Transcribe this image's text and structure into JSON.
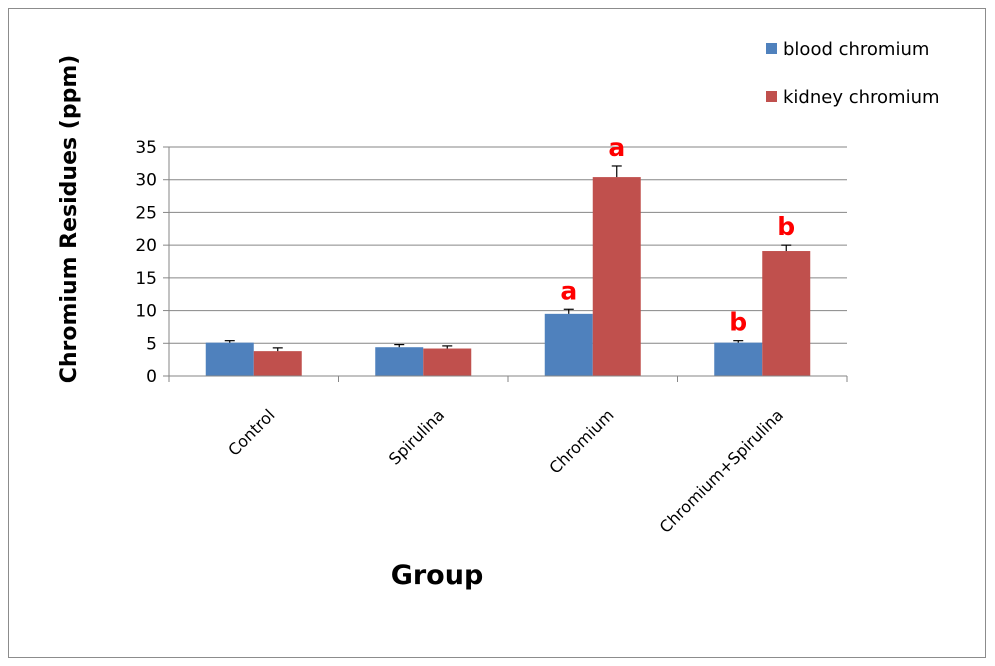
{
  "chart_data": {
    "type": "bar",
    "categories": [
      "Control",
      "Spirulina",
      "Chromium",
      "Chromium+Spirulina"
    ],
    "series": [
      {
        "name": "blood chromium",
        "color": "#4F81BD",
        "values": [
          5.1,
          4.4,
          9.5,
          5.1
        ],
        "errors": [
          0.3,
          0.4,
          0.7,
          0.3
        ],
        "labels": [
          "",
          "",
          "a",
          "b"
        ]
      },
      {
        "name": "kidney chromium",
        "color": "#C0504D",
        "values": [
          3.8,
          4.2,
          30.4,
          19.1
        ],
        "errors": [
          0.5,
          0.4,
          1.7,
          0.9
        ],
        "labels": [
          "",
          "",
          "a",
          "b"
        ]
      }
    ],
    "title": "",
    "xlabel": "Group",
    "ylabel": "Chromium Residues (ppm)",
    "ylim": [
      0,
      35
    ],
    "yticks": [
      "0",
      "5",
      "10",
      "15",
      "20",
      "25",
      "30",
      "35"
    ],
    "grid": true,
    "legend": "top-right",
    "annotation_color": "#FF0000"
  }
}
